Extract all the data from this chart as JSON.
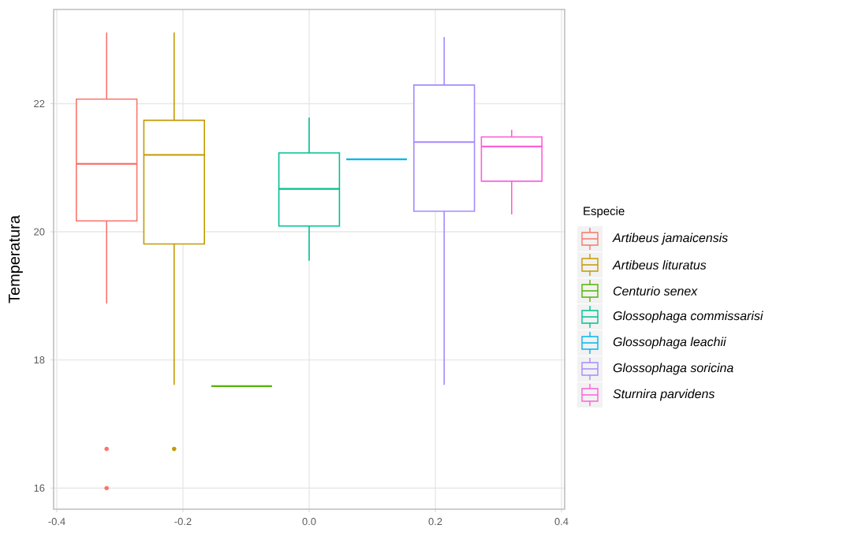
{
  "chart_data": {
    "type": "box",
    "ylabel": "Temperatura",
    "legend_title": "Especie",
    "legend": "right",
    "grid": true,
    "xlim": [
      -0.405,
      0.405
    ],
    "xticks": [
      -0.4,
      -0.2,
      {
        "value": 0,
        "label": "0.0"
      },
      0.2,
      0.4
    ],
    "ylim": [
      15.67,
      23.47
    ],
    "yticks": [
      16,
      18,
      20,
      22
    ],
    "series": [
      {
        "name": "Artibeus jamaicensis",
        "color": "#F8766D",
        "x": [
          -0.321
        ],
        "boxes": [
          {
            "low": 18.88,
            "q1": 20.17,
            "median": 21.06,
            "q3": 22.07,
            "high": 23.11,
            "outliers": [
              16.61,
              16.0
            ]
          }
        ]
      },
      {
        "name": "Artibeus lituratus",
        "color": "#C49A00",
        "x": [
          -0.214
        ],
        "boxes": [
          {
            "low": 17.61,
            "q1": 19.81,
            "median": 21.2,
            "q3": 21.74,
            "high": 23.11,
            "outliers": [
              16.61
            ]
          }
        ]
      },
      {
        "name": "Centurio senex",
        "color": "#53B400",
        "x": [
          -0.107
        ],
        "boxes": [
          {
            "low": 17.59,
            "q1": 17.59,
            "median": 17.59,
            "q3": 17.59,
            "high": 17.59
          }
        ]
      },
      {
        "name": "Glossophaga commissarisi",
        "color": "#00C094",
        "x": [
          0.0
        ],
        "boxes": [
          {
            "low": 19.55,
            "q1": 20.09,
            "median": 20.67,
            "q3": 21.23,
            "high": 21.78
          }
        ]
      },
      {
        "name": "Glossophaga leachii",
        "color": "#00B6EB",
        "x": [
          0.107
        ],
        "boxes": [
          {
            "low": 21.13,
            "q1": 21.13,
            "median": 21.13,
            "q3": 21.13,
            "high": 21.13
          }
        ]
      },
      {
        "name": "Glossophaga soricina",
        "color": "#A58AFF",
        "x": [
          0.214
        ],
        "boxes": [
          {
            "low": 17.61,
            "q1": 20.32,
            "median": 21.4,
            "q3": 22.29,
            "high": 23.04
          }
        ]
      },
      {
        "name": "Sturnira parvidens",
        "color": "#FB61D7",
        "x": [
          0.321
        ],
        "boxes": [
          {
            "low": 20.27,
            "q1": 20.79,
            "median": 21.33,
            "q3": 21.48,
            "high": 21.59
          }
        ]
      }
    ]
  }
}
